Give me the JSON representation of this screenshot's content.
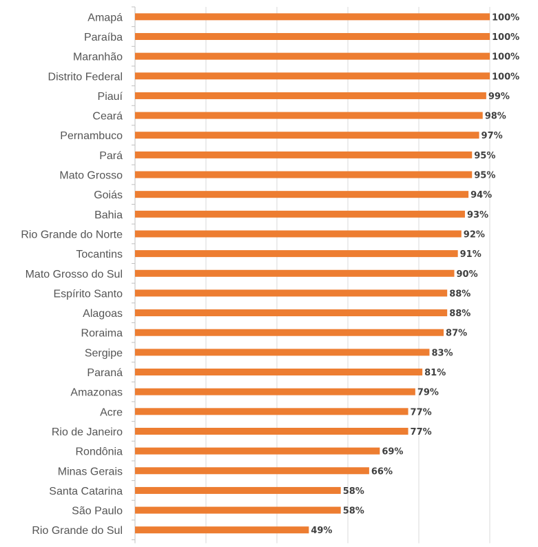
{
  "chart_data": {
    "type": "bar",
    "orientation": "horizontal",
    "title": "",
    "xlabel": "",
    "ylabel": "",
    "xlim": [
      0,
      100
    ],
    "grid": true,
    "bar_color": "#ED7D31",
    "categories": [
      "Amapá",
      "Paraíba",
      "Maranhão",
      "Distrito Federal",
      "Piauí",
      "Ceará",
      "Pernambuco",
      "Pará",
      "Mato Grosso",
      "Goiás",
      "Bahia",
      "Rio Grande do Norte",
      "Tocantins",
      "Mato Grosso do Sul",
      "Espírito Santo",
      "Alagoas",
      "Roraima",
      "Sergipe",
      "Paraná",
      "Amazonas",
      "Acre",
      "Rio de Janeiro",
      "Rondônia",
      "Minas Gerais",
      "Santa Catarina",
      "São Paulo",
      "Rio Grande do Sul"
    ],
    "values": [
      100,
      100,
      100,
      100,
      99,
      98,
      97,
      95,
      95,
      94,
      93,
      92,
      91,
      90,
      88,
      88,
      87,
      83,
      81,
      79,
      77,
      77,
      69,
      66,
      58,
      58,
      49
    ],
    "data_labels": [
      "100%",
      "100%",
      "100%",
      "100%",
      "99%",
      "98%",
      "97%",
      "95%",
      "95%",
      "94%",
      "93%",
      "92%",
      "91%",
      "90%",
      "88%",
      "88%",
      "87%",
      "83%",
      "81%",
      "79%",
      "77%",
      "77%",
      "69%",
      "66%",
      "58%",
      "58%",
      "49%"
    ]
  }
}
